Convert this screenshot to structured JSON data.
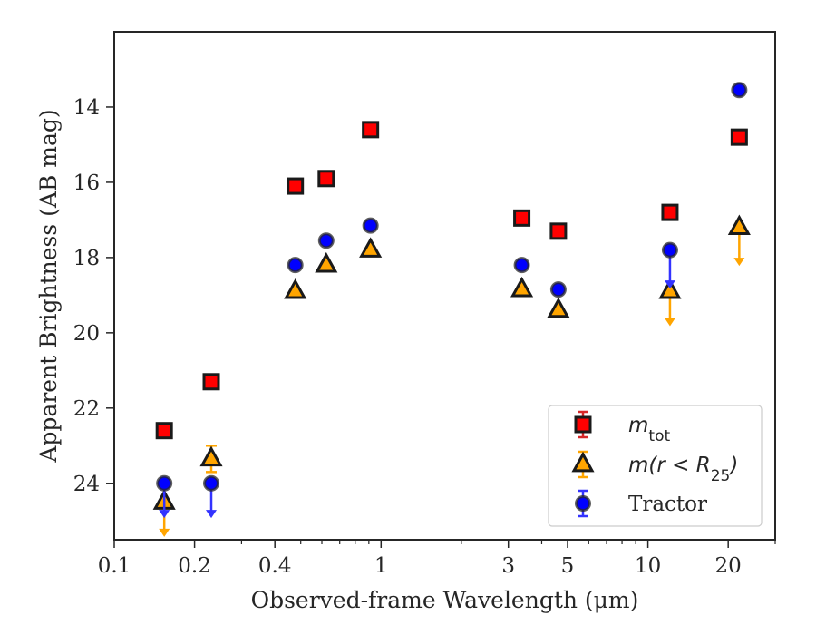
{
  "chart_data": {
    "type": "scatter",
    "title": "",
    "xlabel": "Observed-frame Wavelength (μm)",
    "ylabel": "Apparent Brightness (AB mag)",
    "x_scale": "log",
    "xlim": [
      0.1,
      30
    ],
    "ylim": [
      25.5,
      12
    ],
    "y_inverted": true,
    "x_ticks": [
      {
        "value": 0.1,
        "label": "0.1"
      },
      {
        "value": 0.2,
        "label": "0.2"
      },
      {
        "value": 0.4,
        "label": "0.4"
      },
      {
        "value": 1,
        "label": "1"
      },
      {
        "value": 3,
        "label": "3"
      },
      {
        "value": 5,
        "label": "5"
      },
      {
        "value": 10,
        "label": "10"
      },
      {
        "value": 20,
        "label": "20"
      }
    ],
    "y_ticks": [
      {
        "value": 14,
        "label": "14"
      },
      {
        "value": 16,
        "label": "16"
      },
      {
        "value": 18,
        "label": "18"
      },
      {
        "value": 20,
        "label": "20"
      },
      {
        "value": 22,
        "label": "22"
      },
      {
        "value": 24,
        "label": "24"
      }
    ],
    "grid": false,
    "legend_position": "lower-right",
    "series": [
      {
        "name": "m_tot",
        "legend_main": "m",
        "legend_sub": "tot",
        "marker": "square",
        "color": "#ff0000",
        "error_color": "#d62728",
        "points": [
          {
            "x": 0.154,
            "y": 22.6
          },
          {
            "x": 0.231,
            "y": 21.3
          },
          {
            "x": 0.477,
            "y": 16.1
          },
          {
            "x": 0.623,
            "y": 15.9
          },
          {
            "x": 0.913,
            "y": 14.6
          },
          {
            "x": 3.37,
            "y": 16.95
          },
          {
            "x": 4.62,
            "y": 17.3
          },
          {
            "x": 12.1,
            "y": 16.8
          },
          {
            "x": 22.0,
            "y": 14.8
          }
        ]
      },
      {
        "name": "m(r<R_25)",
        "legend_main": "m(r < R",
        "legend_sub": "25",
        "legend_end": ")",
        "marker": "triangle",
        "color": "#ffa500",
        "error_color": "#ffa500",
        "points": [
          {
            "x": 0.154,
            "y": 24.5,
            "upper_limit": true,
            "arrow_to": 25.4
          },
          {
            "x": 0.231,
            "y": 23.35,
            "yerr": [
              0.35,
              0.35
            ]
          },
          {
            "x": 0.477,
            "y": 18.9
          },
          {
            "x": 0.623,
            "y": 18.2
          },
          {
            "x": 0.913,
            "y": 17.8
          },
          {
            "x": 3.37,
            "y": 18.85
          },
          {
            "x": 4.62,
            "y": 19.4
          },
          {
            "x": 12.1,
            "y": 18.9,
            "upper_limit": true,
            "arrow_to": 19.8
          },
          {
            "x": 22.0,
            "y": 17.2,
            "upper_limit": true,
            "arrow_to": 18.2
          }
        ]
      },
      {
        "name": "Tractor",
        "legend_main": "Tractor",
        "marker": "circle",
        "color": "#0000ff",
        "error_color": "#3333ff",
        "points": [
          {
            "x": 0.154,
            "y": 24.0,
            "upper_limit": true,
            "arrow_to": 24.9
          },
          {
            "x": 0.231,
            "y": 24.0,
            "upper_limit": true,
            "arrow_to": 24.9
          },
          {
            "x": 0.477,
            "y": 18.2
          },
          {
            "x": 0.623,
            "y": 17.55
          },
          {
            "x": 0.913,
            "y": 17.15
          },
          {
            "x": 3.37,
            "y": 18.2
          },
          {
            "x": 4.62,
            "y": 18.85
          },
          {
            "x": 12.1,
            "y": 17.8,
            "upper_limit": true,
            "arrow_to": 18.8
          },
          {
            "x": 22.0,
            "y": 13.55
          }
        ]
      }
    ]
  }
}
